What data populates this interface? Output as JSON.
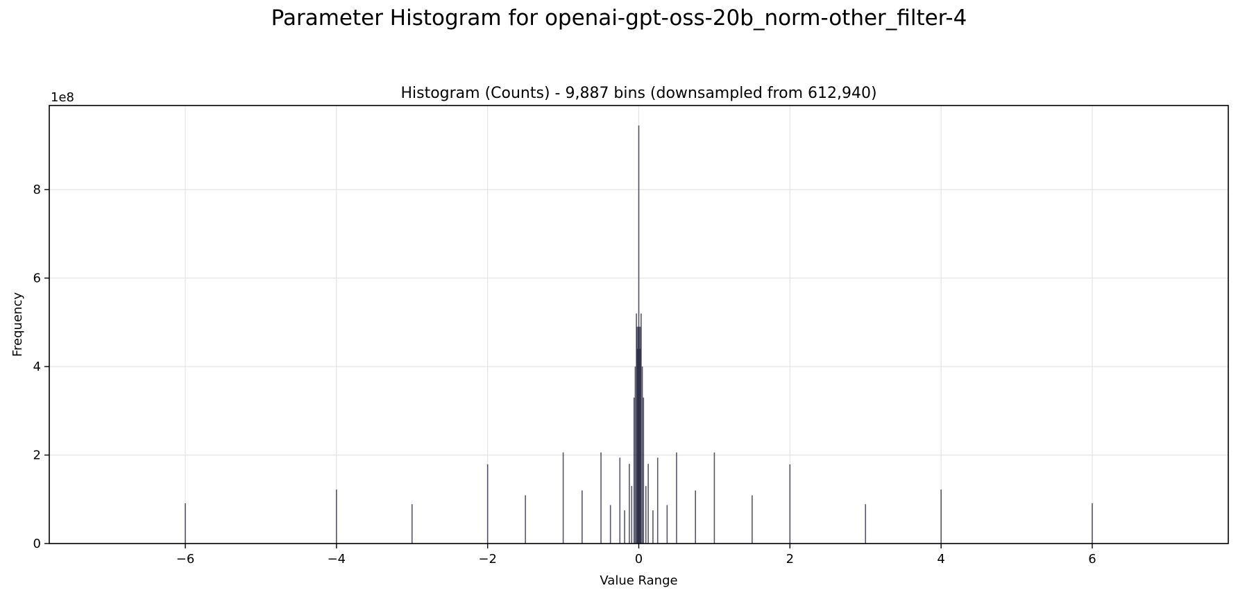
{
  "figure": {
    "suptitle": "Parameter Histogram for openai-gpt-oss-20b_norm-other_filter-4"
  },
  "chart_data": {
    "type": "bar",
    "title": "Histogram (Counts) - 9,887 bins (downsampled from 612,940)",
    "xlabel": "Value Range",
    "ylabel": "Frequency",
    "y_offset_text": "1e8",
    "xlim": [
      -7.8,
      7.8
    ],
    "ylim": [
      0,
      9.9
    ],
    "y_unit_multiplier": 100000000,
    "xticks": [
      -6,
      -4,
      -2,
      0,
      2,
      4,
      6
    ],
    "xtick_labels": [
      "−6",
      "−4",
      "−2",
      "0",
      "2",
      "4",
      "6"
    ],
    "yticks": [
      0,
      2,
      4,
      6,
      8
    ],
    "ytick_labels": [
      "0",
      "2",
      "4",
      "6",
      "8"
    ],
    "grid": true,
    "bar_color": "#1f1f3a",
    "bars": [
      {
        "x": -6.0,
        "y": 0.91
      },
      {
        "x": -4.0,
        "y": 1.22
      },
      {
        "x": -3.0,
        "y": 0.89
      },
      {
        "x": -2.0,
        "y": 1.79
      },
      {
        "x": -1.5,
        "y": 1.09
      },
      {
        "x": -1.0,
        "y": 2.06
      },
      {
        "x": -0.75,
        "y": 1.2
      },
      {
        "x": -0.5,
        "y": 2.06
      },
      {
        "x": -0.375,
        "y": 0.87
      },
      {
        "x": -0.25,
        "y": 1.94
      },
      {
        "x": -0.1875,
        "y": 0.75
      },
      {
        "x": -0.125,
        "y": 1.8
      },
      {
        "x": -0.09375,
        "y": 1.3
      },
      {
        "x": -0.0625,
        "y": 3.3
      },
      {
        "x": -0.046875,
        "y": 4.0
      },
      {
        "x": -0.03125,
        "y": 5.2
      },
      {
        "x": -0.0234375,
        "y": 4.9
      },
      {
        "x": -0.015625,
        "y": 4.4
      },
      {
        "x": -0.0078125,
        "y": 4.9
      },
      {
        "x": 0.0,
        "y": 9.45
      },
      {
        "x": 0.0078125,
        "y": 4.9
      },
      {
        "x": 0.015625,
        "y": 4.4
      },
      {
        "x": 0.0234375,
        "y": 4.9
      },
      {
        "x": 0.03125,
        "y": 5.2
      },
      {
        "x": 0.046875,
        "y": 4.0
      },
      {
        "x": 0.0625,
        "y": 3.3
      },
      {
        "x": 0.09375,
        "y": 1.3
      },
      {
        "x": 0.125,
        "y": 1.8
      },
      {
        "x": 0.1875,
        "y": 0.75
      },
      {
        "x": 0.25,
        "y": 1.94
      },
      {
        "x": 0.375,
        "y": 0.87
      },
      {
        "x": 0.5,
        "y": 2.06
      },
      {
        "x": 0.75,
        "y": 1.2
      },
      {
        "x": 1.0,
        "y": 2.06
      },
      {
        "x": 1.5,
        "y": 1.09
      },
      {
        "x": 2.0,
        "y": 1.79
      },
      {
        "x": 3.0,
        "y": 0.89
      },
      {
        "x": 4.0,
        "y": 1.22
      },
      {
        "x": 6.0,
        "y": 0.91
      }
    ]
  }
}
